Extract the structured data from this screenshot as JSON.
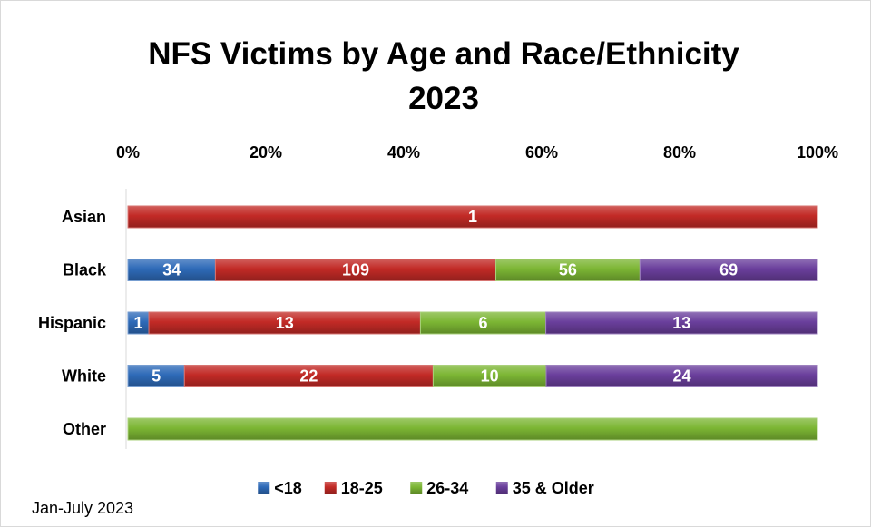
{
  "chart_data": {
    "type": "bar",
    "orientation": "horizontal",
    "stacking": "percent",
    "title": "NFS Victims by Age and Race/Ethnicity",
    "subtitle": "2023",
    "x_ticks": [
      "0%",
      "20%",
      "40%",
      "60%",
      "80%",
      "100%"
    ],
    "xlim": [
      0,
      100
    ],
    "categories": [
      "Asian",
      "Black",
      "Hispanic",
      "White",
      "Other"
    ],
    "series": [
      {
        "name": "<18",
        "color": "#2e6ab8",
        "values": [
          0,
          34,
          1,
          5,
          0
        ],
        "labels": [
          "",
          "34",
          "1",
          "5",
          ""
        ]
      },
      {
        "name": "18-25",
        "color": "#c22a26",
        "values": [
          1,
          109,
          13,
          22,
          0
        ],
        "labels": [
          "1",
          "109",
          "13",
          "22",
          ""
        ]
      },
      {
        "name": "26-34",
        "color": "#7cb634",
        "values": [
          0,
          56,
          6,
          10,
          1
        ],
        "labels": [
          "",
          "56",
          "6",
          "10",
          ""
        ]
      },
      {
        "name": "35 & Older",
        "color": "#6a3f9c",
        "values": [
          0,
          69,
          13,
          24,
          0
        ],
        "labels": [
          "",
          "69",
          "13",
          "24",
          ""
        ]
      }
    ],
    "grid": false,
    "legend_position": "bottom"
  },
  "footnote": "Jan-July 2023"
}
